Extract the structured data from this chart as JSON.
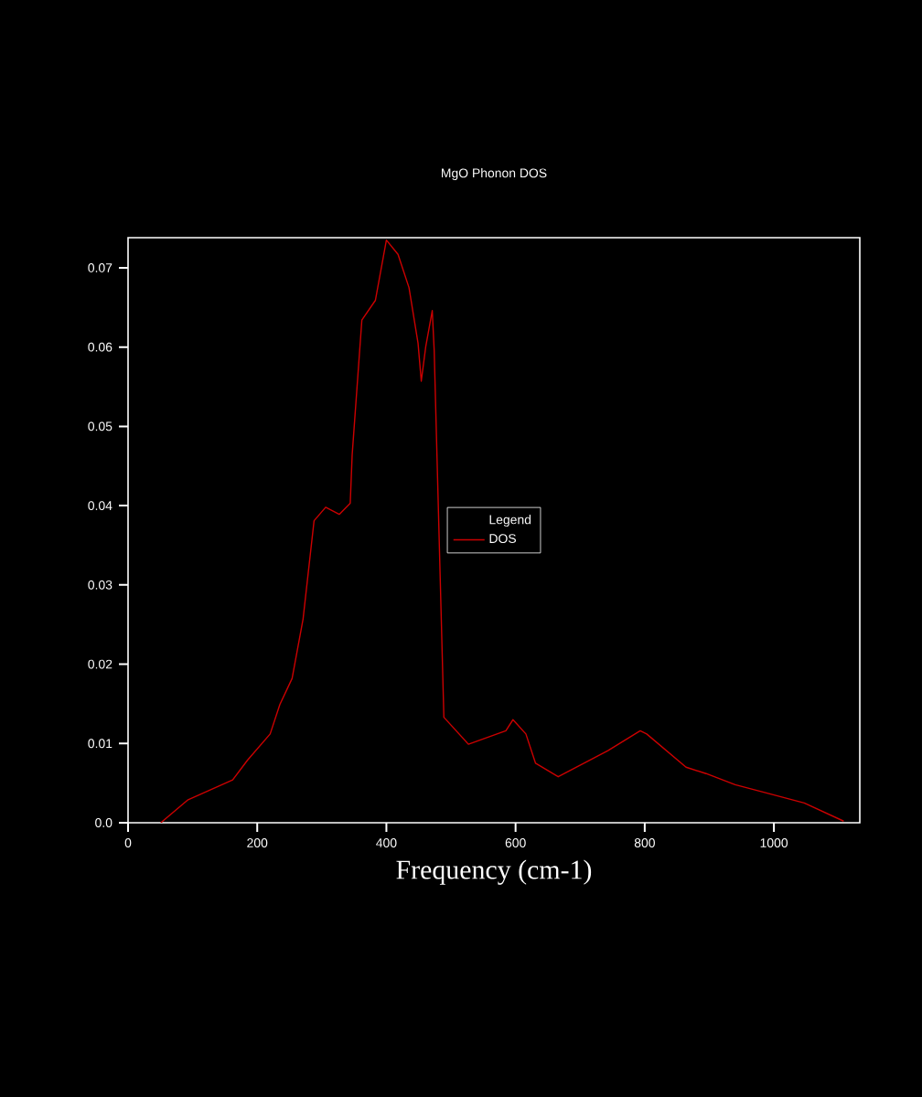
{
  "chart_data": {
    "type": "line",
    "title": "MgO Phonon DOS",
    "xlabel": "Frequency (cm-1)",
    "legend_title": "Legend",
    "x": [
      50.7,
      93,
      162,
      185,
      220,
      235,
      254,
      271,
      288,
      306,
      327,
      344,
      347,
      362,
      383,
      400,
      418,
      435,
      449,
      454,
      461,
      471,
      474,
      489,
      527,
      585,
      596,
      616,
      631,
      666,
      743,
      793,
      803,
      864,
      895,
      940,
      991,
      1047,
      1108
    ],
    "series": [
      {
        "name": "DOS",
        "color": "#cc0000",
        "values": [
          0.0,
          0.0029,
          0.0054,
          0.0079,
          0.0112,
          0.0149,
          0.0182,
          0.0257,
          0.0381,
          0.0398,
          0.0389,
          0.0403,
          0.0464,
          0.0634,
          0.0659,
          0.0735,
          0.0717,
          0.0675,
          0.0605,
          0.0557,
          0.0601,
          0.0646,
          0.0596,
          0.0133,
          0.0099,
          0.0116,
          0.013,
          0.0112,
          0.0075,
          0.0058,
          0.0091,
          0.0116,
          0.0112,
          0.007,
          0.0062,
          0.0048,
          0.0037,
          0.0025,
          0.0002
        ]
      }
    ],
    "xlim": [
      0,
      1133
    ],
    "ylim": [
      0,
      0.0738
    ],
    "xticks": [
      0,
      200,
      400,
      600,
      800,
      1000
    ],
    "yticks": [
      {
        "value": 0,
        "label": "0.0"
      },
      0.01,
      0.02,
      0.03,
      0.04,
      0.05,
      0.06,
      0.07
    ],
    "legend": "center",
    "grid": false,
    "marker": "none",
    "line_style": "solid"
  }
}
